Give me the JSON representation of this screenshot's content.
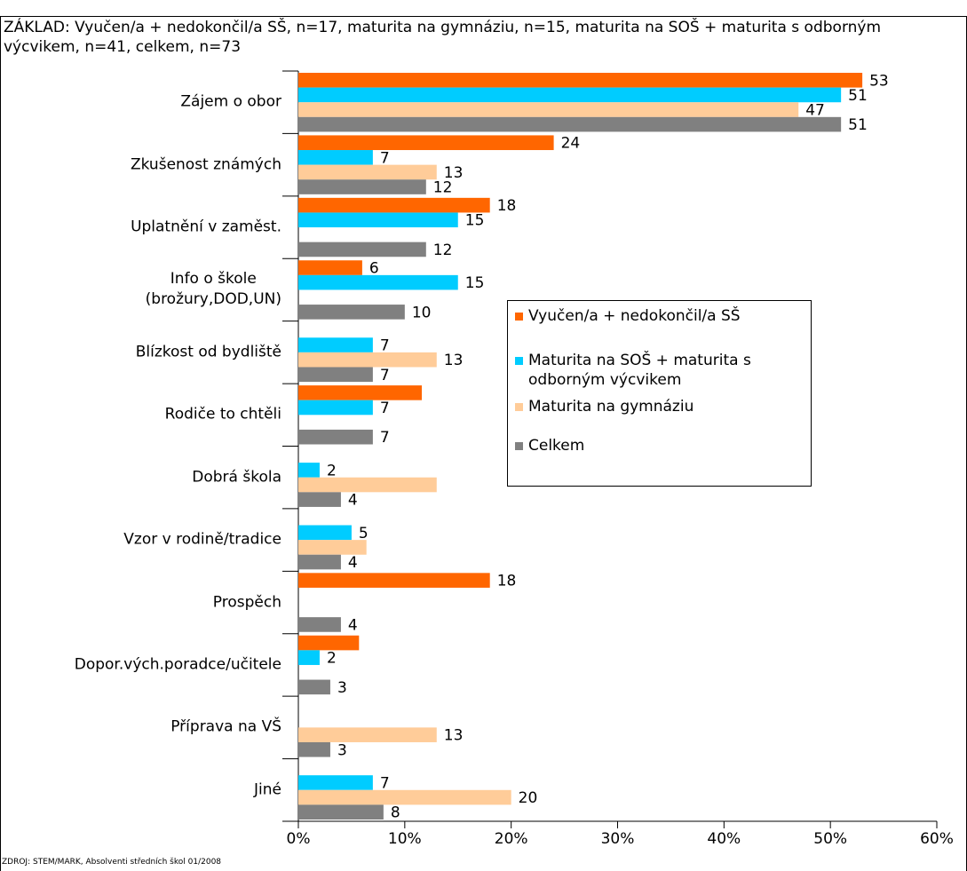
{
  "chart_data": {
    "type": "hbar",
    "subtitle": "ZÁKLAD: Vyučen/a + nedokončil/a SŠ, n=17, maturita na gymnáziu, n=15, maturita na SOŠ + maturita s odborným výcvikem, n=41, celkem, n=73",
    "source": "ZDROJ: STEM/MARK, Absolventi středních škol 01/2008",
    "categories": [
      "Zájem o obor",
      "Zkušenost známých",
      "Uplatnění v zaměst.",
      "Info o škole\n(brožury,DOD,UN)",
      "Blízkost od bydliště",
      "Rodiče to chtěli",
      "Dobrá škola",
      "Vzor v rodině/tradice",
      "Prospěch",
      "Dopor.vých.poradce/učitele",
      "Příprava na VŠ",
      "Jiné"
    ],
    "series": [
      {
        "name": "Vyučen/a + nedokončil/a SŠ",
        "color": "#ff6600",
        "values": [
          53,
          24,
          18,
          6,
          null,
          11.6,
          null,
          null,
          18,
          5.7,
          null,
          null
        ],
        "value_labels": [
          "53",
          "24",
          "18",
          "6",
          null,
          null,
          null,
          null,
          "18",
          null,
          null,
          null
        ]
      },
      {
        "name": "Maturita na SOŠ + maturita s odborným výcvikem",
        "color": "#00ccff",
        "values": [
          51,
          7,
          15,
          15,
          7,
          7,
          2,
          5,
          null,
          2,
          null,
          7
        ],
        "value_labels": [
          "51",
          "7",
          "15",
          "15",
          "7",
          "7",
          "2",
          "5",
          null,
          "2",
          null,
          "7"
        ]
      },
      {
        "name": "Maturita na gymnáziu",
        "color": "#ffcc99",
        "values": [
          47,
          13,
          null,
          null,
          13,
          null,
          13,
          6.4,
          null,
          null,
          13,
          20
        ],
        "value_labels": [
          "47",
          "13",
          null,
          null,
          "13",
          null,
          null,
          null,
          null,
          null,
          "13",
          "20"
        ]
      },
      {
        "name": "Celkem",
        "color": "#808080",
        "values": [
          51,
          12,
          12,
          10,
          7,
          7,
          4,
          4,
          4,
          3,
          3,
          8
        ],
        "value_labels": [
          "51",
          "12",
          "12",
          "10",
          "7",
          "7",
          "4",
          "4",
          "4",
          "3",
          "3",
          "8"
        ]
      }
    ],
    "xlim": [
      0,
      60
    ],
    "xticks": [
      {
        "value": 0,
        "label": "0%"
      },
      {
        "value": 10,
        "label": "10%"
      },
      {
        "value": 20,
        "label": "20%"
      },
      {
        "value": 30,
        "label": "30%"
      },
      {
        "value": 40,
        "label": "40%"
      },
      {
        "value": 50,
        "label": "50%"
      },
      {
        "value": 60,
        "label": "60%"
      }
    ],
    "grid": false,
    "legend_position": "center right"
  }
}
